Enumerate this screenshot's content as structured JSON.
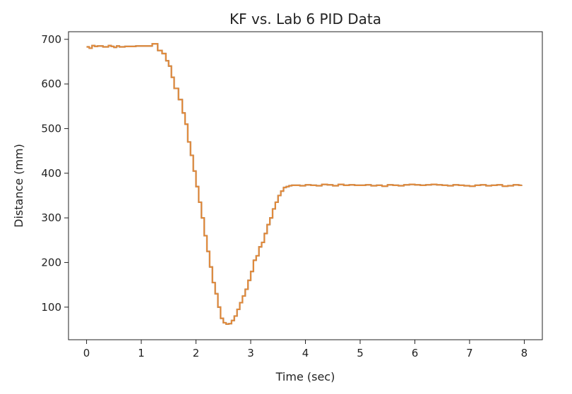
{
  "chart_data": {
    "type": "line",
    "title": "KF vs. Lab 6 PID Data",
    "xlabel": "Time (sec)",
    "ylabel": "Distance (mm)",
    "xlim": [
      -0.33,
      8.33
    ],
    "ylim": [
      27,
      717
    ],
    "xticks": [
      0,
      1,
      2,
      3,
      4,
      5,
      6,
      7,
      8
    ],
    "yticks": [
      100,
      200,
      300,
      400,
      500,
      600,
      700
    ],
    "grid": false,
    "legend": "none",
    "colors": {
      "series": "#e08a3c",
      "series_under": "#6a8fb5",
      "axis": "#222222",
      "background": "#ffffff"
    },
    "series": [
      {
        "style": "step",
        "x": [
          0.0,
          0.05,
          0.1,
          0.15,
          0.2,
          0.3,
          0.4,
          0.45,
          0.5,
          0.55,
          0.6,
          0.7,
          0.8,
          0.9,
          1.0,
          1.1,
          1.2,
          1.25,
          1.3,
          1.38,
          1.45,
          1.5,
          1.55,
          1.6,
          1.68,
          1.75,
          1.8,
          1.85,
          1.9,
          1.95,
          2.0,
          2.05,
          2.1,
          2.15,
          2.2,
          2.25,
          2.3,
          2.35,
          2.4,
          2.45,
          2.5,
          2.55,
          2.6,
          2.65,
          2.7,
          2.75,
          2.8,
          2.85,
          2.9,
          2.95,
          3.0,
          3.05,
          3.1,
          3.15,
          3.2,
          3.25,
          3.3,
          3.35,
          3.4,
          3.45,
          3.5,
          3.55,
          3.6,
          3.65,
          3.7,
          3.75,
          3.8,
          3.9,
          4.0,
          4.1,
          4.2,
          4.3,
          4.4,
          4.5,
          4.6,
          4.7,
          4.8,
          4.9,
          5.0,
          5.1,
          5.2,
          5.3,
          5.4,
          5.5,
          5.6,
          5.7,
          5.8,
          5.9,
          6.0,
          6.1,
          6.2,
          6.3,
          6.4,
          6.5,
          6.6,
          6.7,
          6.8,
          6.9,
          7.0,
          7.1,
          7.2,
          7.3,
          7.4,
          7.5,
          7.6,
          7.7,
          7.8,
          7.9,
          7.95
        ],
        "y": [
          683,
          680,
          686,
          684,
          685,
          683,
          686,
          684,
          682,
          685,
          683,
          684,
          684,
          685,
          685,
          685,
          690,
          690,
          675,
          668,
          652,
          640,
          615,
          590,
          565,
          535,
          510,
          470,
          440,
          405,
          370,
          335,
          300,
          260,
          225,
          190,
          155,
          130,
          100,
          75,
          65,
          62,
          63,
          70,
          80,
          95,
          110,
          125,
          140,
          160,
          180,
          205,
          215,
          235,
          245,
          265,
          285,
          300,
          320,
          335,
          350,
          360,
          368,
          370,
          372,
          373,
          373,
          372,
          374,
          373,
          372,
          375,
          374,
          372,
          375,
          373,
          374,
          373,
          373,
          374,
          372,
          373,
          371,
          374,
          373,
          372,
          374,
          375,
          374,
          373,
          374,
          375,
          374,
          373,
          372,
          374,
          373,
          372,
          371,
          373,
          374,
          372,
          373,
          374,
          371,
          372,
          374,
          373,
          374
        ]
      }
    ]
  }
}
